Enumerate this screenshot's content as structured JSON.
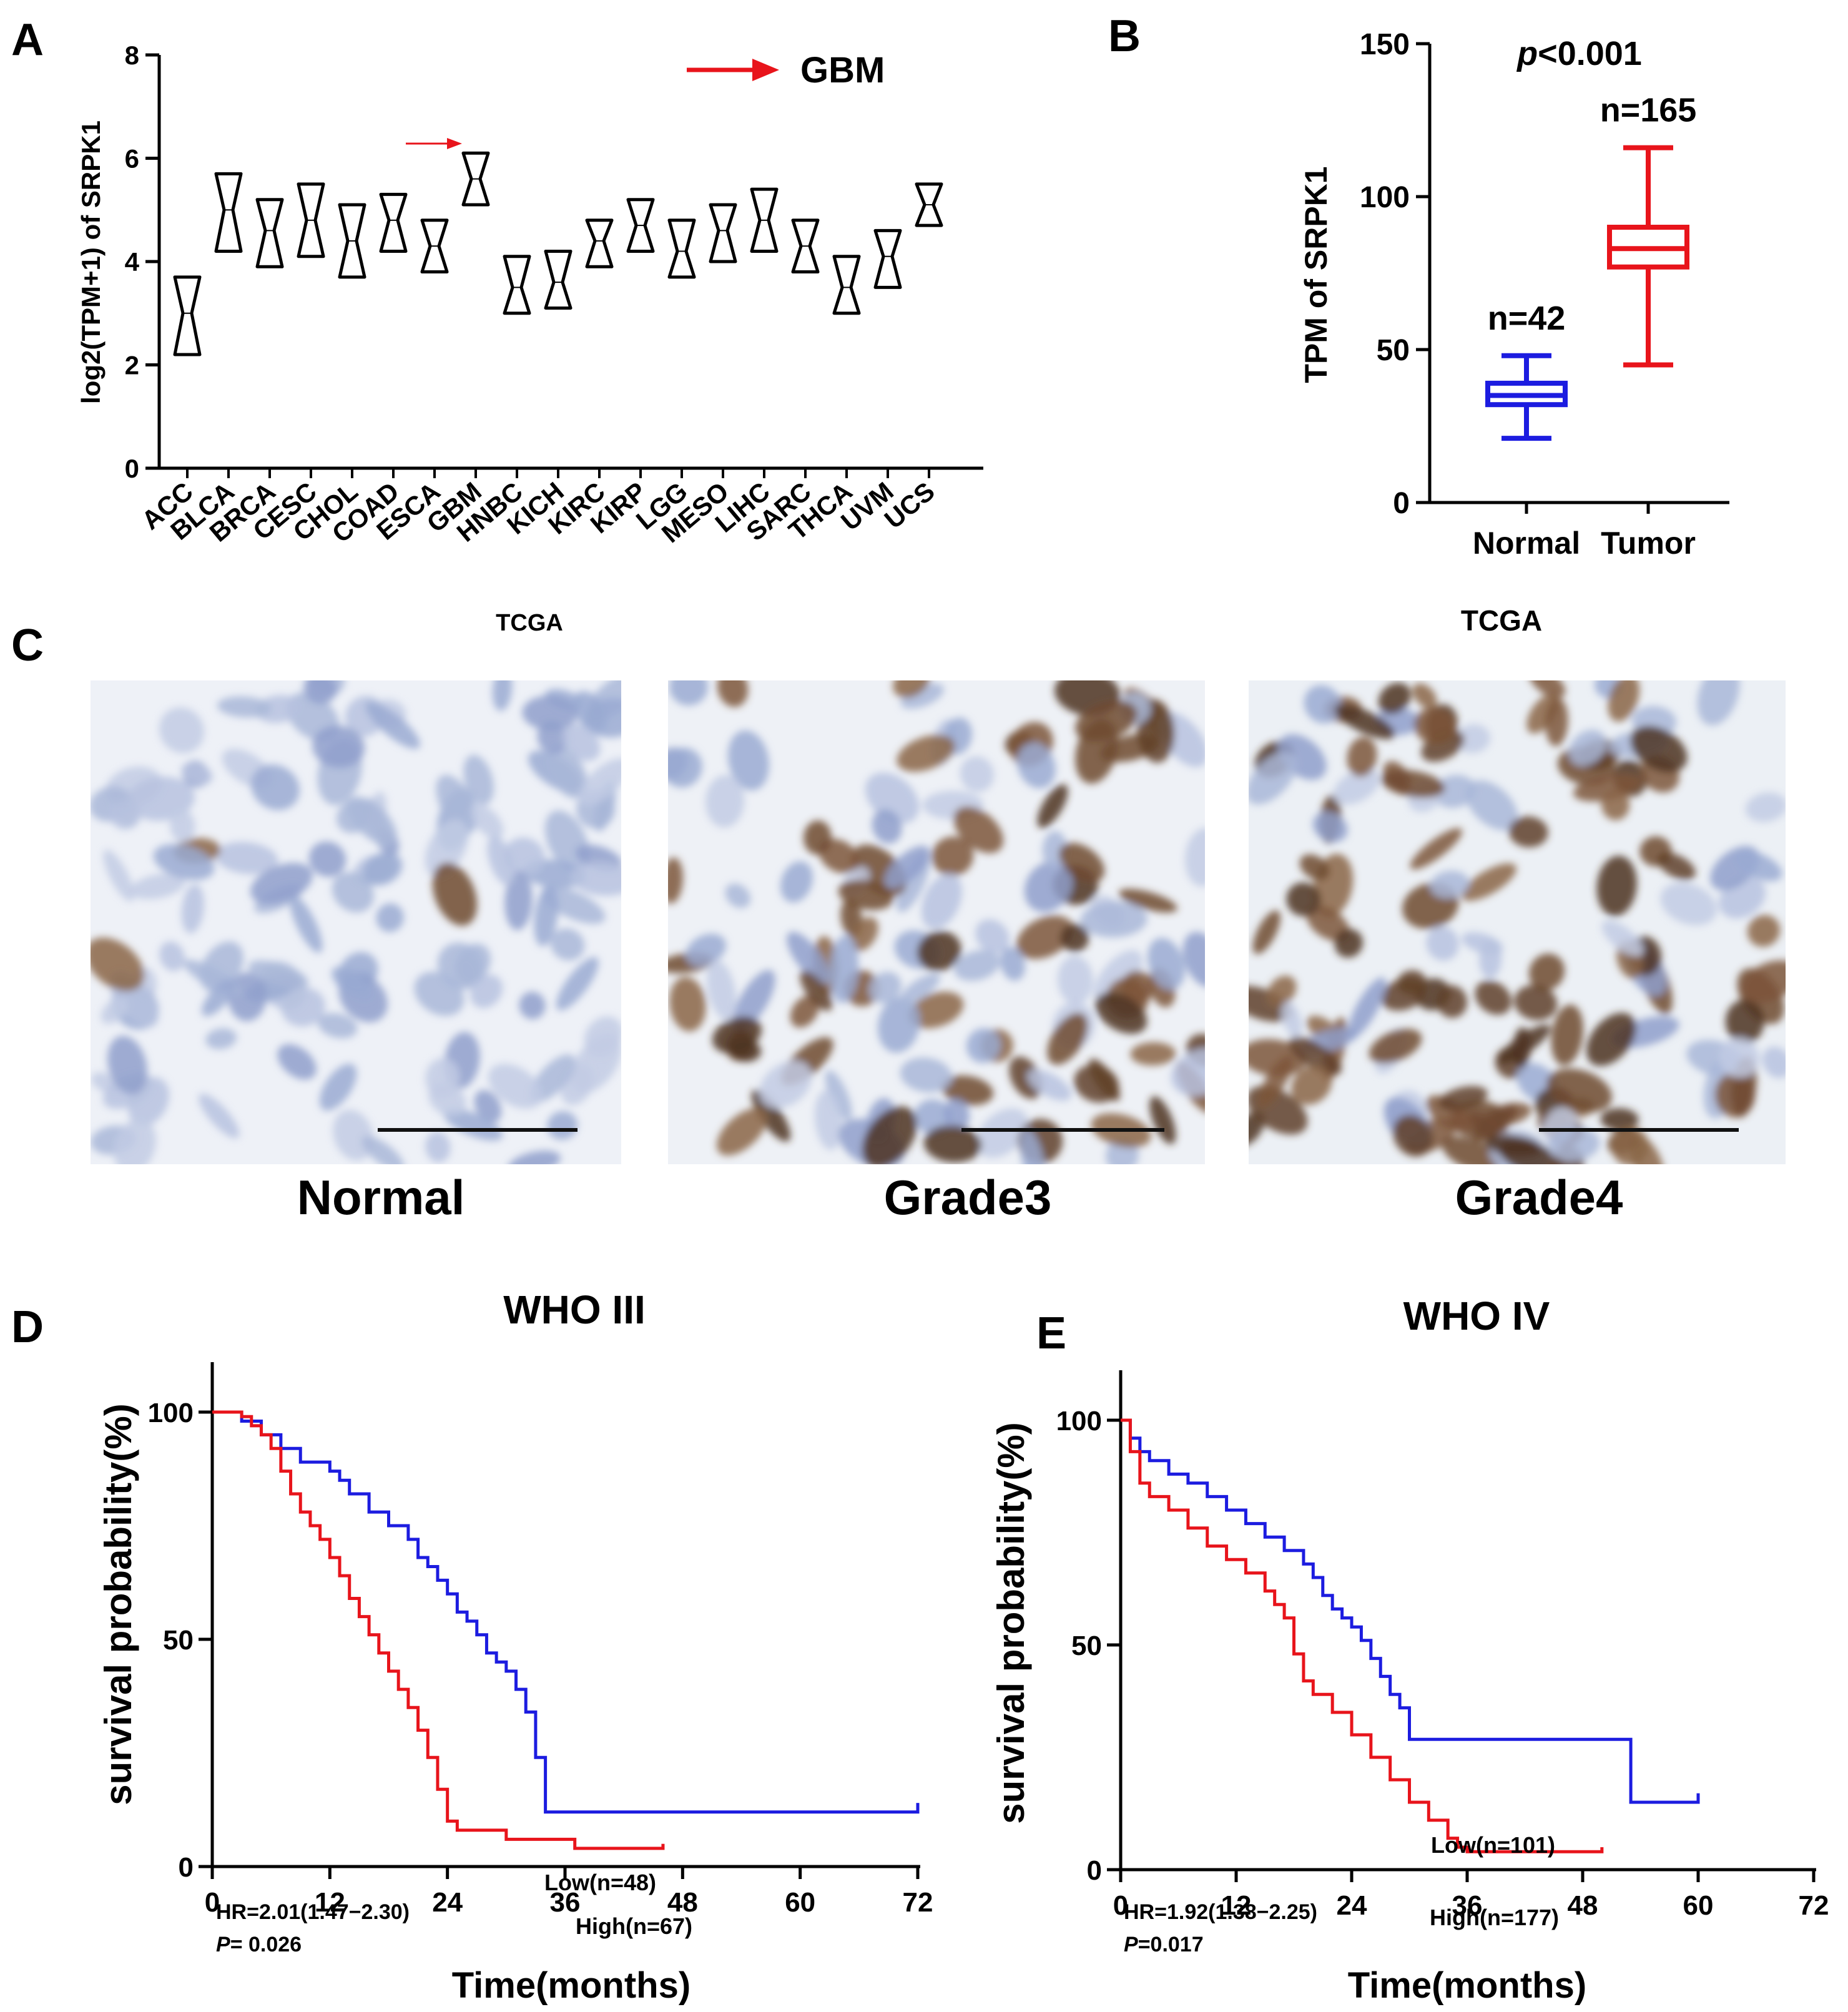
{
  "panel_letters": {
    "a": "A",
    "b": "B",
    "c": "C",
    "d": "D",
    "e": "E"
  },
  "colors": {
    "axis": "#000000",
    "red": "#e8141b",
    "blue": "#1c1ce0",
    "ihc_bg": "#eef1f6"
  },
  "chart_data": [
    {
      "panel": "A",
      "type": "box",
      "ylabel": "log2(TPM+1) of SRPK1",
      "ylim": [
        0,
        8
      ],
      "yticks": [
        0,
        2,
        4,
        6,
        8
      ],
      "legend_label": "GBM",
      "categories": [
        "ACC",
        "BLCA",
        "BRCA",
        "CESC",
        "CHOL",
        "COAD",
        "ESCA",
        "GBM",
        "HNBC",
        "KICH",
        "KIRC",
        "KIRP",
        "LGG",
        "MESO",
        "LIHC",
        "SARC",
        "THCA",
        "UVM",
        "UCS"
      ],
      "boxes": [
        {
          "q1": 2.2,
          "median": 3.0,
          "q3": 3.7
        },
        {
          "q1": 4.2,
          "median": 5.0,
          "q3": 5.7
        },
        {
          "q1": 3.9,
          "median": 4.6,
          "q3": 5.2
        },
        {
          "q1": 4.1,
          "median": 4.8,
          "q3": 5.5
        },
        {
          "q1": 3.7,
          "median": 4.4,
          "q3": 5.1
        },
        {
          "q1": 4.2,
          "median": 4.8,
          "q3": 5.3
        },
        {
          "q1": 3.8,
          "median": 4.3,
          "q3": 4.8
        },
        {
          "q1": 5.1,
          "median": 5.6,
          "q3": 6.1
        },
        {
          "q1": 3.0,
          "median": 3.5,
          "q3": 4.1
        },
        {
          "q1": 3.1,
          "median": 3.6,
          "q3": 4.2
        },
        {
          "q1": 3.9,
          "median": 4.4,
          "q3": 4.8
        },
        {
          "q1": 4.2,
          "median": 4.7,
          "q3": 5.2
        },
        {
          "q1": 3.7,
          "median": 4.2,
          "q3": 4.8
        },
        {
          "q1": 4.0,
          "median": 4.6,
          "q3": 5.1
        },
        {
          "q1": 4.2,
          "median": 4.8,
          "q3": 5.4
        },
        {
          "q1": 3.8,
          "median": 4.3,
          "q3": 4.8
        },
        {
          "q1": 3.0,
          "median": 3.5,
          "q3": 4.1
        },
        {
          "q1": 3.5,
          "median": 4.1,
          "q3": 4.6
        },
        {
          "q1": 4.7,
          "median": 5.1,
          "q3": 5.5
        }
      ]
    },
    {
      "panel": "B",
      "type": "box",
      "ylabel": "TPM of SRPK1",
      "ylim": [
        0,
        150
      ],
      "yticks": [
        0,
        50,
        100,
        150
      ],
      "pvalue_p": "p",
      "pvalue_rest": "<0.001",
      "groups": [
        {
          "name": "Normal",
          "n_label": "n=42",
          "min": 21,
          "q1": 32,
          "median": 35,
          "q3": 39,
          "max": 48
        },
        {
          "name": "Tumor",
          "n_label": "n=165",
          "min": 45,
          "q1": 77,
          "median": 83,
          "q3": 90,
          "max": 116
        }
      ]
    },
    {
      "panel": "D",
      "type": "line",
      "title": "WHO III",
      "xlabel": "Time(months)",
      "ylabel": "survival probability(%)",
      "xlim": [
        0,
        72
      ],
      "ylim": [
        0,
        100
      ],
      "xticks": [
        0,
        12,
        24,
        36,
        48,
        60,
        72
      ],
      "yticks": [
        0,
        50,
        100
      ],
      "hr_label": "HR=2.01(1.47−2.30)",
      "p_italic": "P",
      "p_rest": "= 0.026",
      "series": [
        {
          "name": "Low(n=48)",
          "points": [
            [
              0,
              100
            ],
            [
              2,
              100
            ],
            [
              3,
              98
            ],
            [
              5,
              95
            ],
            [
              7,
              92
            ],
            [
              9,
              89
            ],
            [
              12,
              87
            ],
            [
              13,
              85
            ],
            [
              14,
              82
            ],
            [
              16,
              78
            ],
            [
              18,
              75
            ],
            [
              20,
              72
            ],
            [
              21,
              68
            ],
            [
              22,
              66
            ],
            [
              23,
              63
            ],
            [
              24,
              60
            ],
            [
              25,
              56
            ],
            [
              26,
              54
            ],
            [
              27,
              51
            ],
            [
              28,
              47
            ],
            [
              29,
              45
            ],
            [
              30,
              43
            ],
            [
              31,
              39
            ],
            [
              32,
              34
            ],
            [
              33,
              24
            ],
            [
              34,
              24
            ],
            [
              34,
              12
            ],
            [
              72,
              12
            ],
            [
              72,
              14
            ]
          ]
        },
        {
          "name": "High(n=67)",
          "points": [
            [
              0,
              100
            ],
            [
              3,
              99
            ],
            [
              4,
              97
            ],
            [
              5,
              95
            ],
            [
              6,
              92
            ],
            [
              7,
              87
            ],
            [
              8,
              82
            ],
            [
              9,
              78
            ],
            [
              10,
              75
            ],
            [
              11,
              72
            ],
            [
              12,
              68
            ],
            [
              13,
              64
            ],
            [
              14,
              59
            ],
            [
              15,
              55
            ],
            [
              16,
              51
            ],
            [
              17,
              47
            ],
            [
              18,
              43
            ],
            [
              19,
              39
            ],
            [
              20,
              35
            ],
            [
              21,
              30
            ],
            [
              22,
              24
            ],
            [
              23,
              17
            ],
            [
              24,
              10
            ],
            [
              25,
              8
            ],
            [
              30,
              8
            ],
            [
              30,
              6
            ],
            [
              37,
              6
            ],
            [
              37,
              4
            ],
            [
              46,
              4
            ],
            [
              46,
              5
            ]
          ]
        }
      ]
    },
    {
      "panel": "E",
      "type": "line",
      "title": "WHO IV",
      "xlabel": "Time(months)",
      "ylabel": "survival probability(%)",
      "xlim": [
        0,
        72
      ],
      "ylim": [
        0,
        100
      ],
      "xticks": [
        0,
        12,
        24,
        36,
        48,
        60,
        72
      ],
      "yticks": [
        0,
        50,
        100
      ],
      "hr_label": "HR=1.92(1.38−2.25)",
      "p_italic": "P",
      "p_rest": "=0.017",
      "series": [
        {
          "name": "Low(n=101)",
          "points": [
            [
              0,
              100
            ],
            [
              1,
              96
            ],
            [
              2,
              93
            ],
            [
              3,
              91
            ],
            [
              5,
              88
            ],
            [
              7,
              86
            ],
            [
              9,
              83
            ],
            [
              11,
              80
            ],
            [
              13,
              77
            ],
            [
              15,
              74
            ],
            [
              17,
              71
            ],
            [
              19,
              68
            ],
            [
              20,
              65
            ],
            [
              21,
              61
            ],
            [
              22,
              58
            ],
            [
              23,
              56
            ],
            [
              24,
              54
            ],
            [
              25,
              51
            ],
            [
              26,
              47
            ],
            [
              27,
              43
            ],
            [
              28,
              39
            ],
            [
              29,
              36
            ],
            [
              30,
              33
            ],
            [
              30,
              29
            ],
            [
              53,
              29
            ],
            [
              53,
              15
            ],
            [
              60,
              15
            ],
            [
              60,
              17
            ]
          ]
        },
        {
          "name": "High(n=177)",
          "points": [
            [
              0,
              100
            ],
            [
              1,
              93
            ],
            [
              2,
              86
            ],
            [
              3,
              83
            ],
            [
              5,
              80
            ],
            [
              7,
              76
            ],
            [
              9,
              72
            ],
            [
              11,
              69
            ],
            [
              13,
              66
            ],
            [
              15,
              62
            ],
            [
              16,
              59
            ],
            [
              17,
              56
            ],
            [
              18,
              48
            ],
            [
              19,
              42
            ],
            [
              20,
              39
            ],
            [
              22,
              35
            ],
            [
              24,
              30
            ],
            [
              26,
              25
            ],
            [
              28,
              20
            ],
            [
              30,
              15
            ],
            [
              32,
              11
            ],
            [
              34,
              7
            ],
            [
              35,
              5
            ],
            [
              36,
              4
            ],
            [
              50,
              4
            ],
            [
              50,
              5
            ]
          ]
        }
      ]
    }
  ],
  "panel_c": {
    "tcga_left": "TCGA",
    "tcga_right": "TCGA",
    "labels": [
      "Normal",
      "Grade3",
      "Grade4"
    ]
  }
}
